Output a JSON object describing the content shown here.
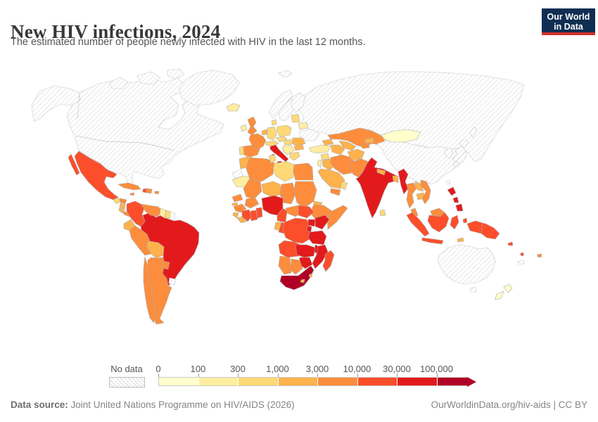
{
  "header": {
    "title": "New HIV infections, 2024",
    "subtitle": "The estimated number of people newly infected with HIV in the last 12 months."
  },
  "logo": {
    "line1": "Our World",
    "line2": "in Data",
    "bg": "#0f2e52",
    "accent": "#cf3129"
  },
  "legend": {
    "no_data_label": "No data",
    "tick_labels": [
      "0",
      "100",
      "300",
      "1,000",
      "3,000",
      "10,000",
      "30,000",
      "100,000"
    ]
  },
  "footer": {
    "source_label": "Data source:",
    "source_text": " Joint United Nations Programme on HIV/AIDS (2026)",
    "right_text": "OurWorldinData.org/hiv-aids | CC BY"
  },
  "chart_data": {
    "type": "choropleth",
    "title": "New HIV infections, 2024",
    "unit": "people newly infected with HIV in the last 12 months",
    "legend_position": "bottom",
    "bins": [
      {
        "id": "c1",
        "range": "0-100",
        "color": "#ffffcc"
      },
      {
        "id": "c2",
        "range": "100-300",
        "color": "#ffeda0"
      },
      {
        "id": "c3",
        "range": "300-1,000",
        "color": "#fed976"
      },
      {
        "id": "c4",
        "range": "1,000-3,000",
        "color": "#feb24c"
      },
      {
        "id": "c5",
        "range": "3,000-10,000",
        "color": "#fd8d3c"
      },
      {
        "id": "c6",
        "range": "10,000-30,000",
        "color": "#fc4e2a"
      },
      {
        "id": "c7",
        "range": "30,000-100,000",
        "color": "#e31a1c"
      },
      {
        "id": "c8",
        "range": "100,000+",
        "color": "#b10026"
      },
      {
        "id": "nodata",
        "range": "No data",
        "color": "hatch"
      }
    ],
    "countries": {
      "United States": "nodata",
      "Canada": "nodata",
      "Greenland": "nodata",
      "Mexico": "c6",
      "Guatemala": "c3",
      "Honduras": "c5",
      "Nicaragua": "c4",
      "Costa Rica": "c4",
      "Panama": "c5",
      "Cuba": "c5",
      "Jamaica": "c5",
      "Haiti": "c6",
      "Dominican Republic": "c5",
      "Puerto Rico": "c5",
      "Colombia": "c6",
      "Venezuela": "c5",
      "Guyana": "c2",
      "Suriname": "c3",
      "French Guiana": "nodata",
      "Ecuador": "c4",
      "Peru": "c5",
      "Bolivia": "c4",
      "Brazil": "c7",
      "Paraguay": "c5",
      "Uruguay": "nodata",
      "Argentina": "c5",
      "Chile": "c5",
      "Iceland": "c2",
      "Ireland": "c2",
      "United Kingdom": "c5",
      "Portugal": "c3",
      "Spain": "c5",
      "France": "c5",
      "Belgium": "c4",
      "Germany": "c3",
      "Denmark": "c3",
      "Norway": "nodata",
      "Sweden": "nodata",
      "Finland": "nodata",
      "Baltic states": "c3",
      "Poland": "c3",
      "Czechia": "c3",
      "Austria": "c3",
      "Hungary": "c3",
      "Romania": "c4",
      "Serbia": "c2",
      "Bulgaria": "c4",
      "Greece": "c3",
      "Italy": "c7",
      "Belarus": "c2",
      "Ukraine": "nodata",
      "Russia": "nodata",
      "Svalbard": "nodata",
      "Turkey": "c2",
      "Syria": "c3",
      "Jordan": "c2",
      "Iraq": "c4",
      "Saudi Arabia": "c4",
      "Yemen": "c5",
      "Oman": "c3",
      "Iran": "c5",
      "Georgia": "c4",
      "Kazakhstan": "c5",
      "Uzbekistan": "c4",
      "Turkmenistan": "c4",
      "Kyrgyzstan": "c4",
      "Tajikistan": "c5",
      "Afghanistan": "c4",
      "Pakistan": "c5",
      "India": "c7",
      "Nepal": "c4",
      "Bangladesh": "c4",
      "Sri Lanka": "c3",
      "Myanmar": "c7",
      "Thailand": "c5",
      "Laos": "c4",
      "Cambodia": "c4",
      "Vietnam": "c5",
      "Malaysia": "c5",
      "Mongolia": "c1",
      "China": "nodata",
      "Taiwan": "nodata",
      "South Korea": "nodata",
      "Japan": "nodata",
      "Morocco": "c4",
      "Western Sahara": "nodata",
      "Mauritania": "c2",
      "Mali": "c5",
      "Algeria": "c5",
      "Tunisia": "c3",
      "Libya": "c3",
      "Egypt": "c5",
      "Niger": "c4",
      "Chad": "c5",
      "Sudan": "c5",
      "Eritrea": "c4",
      "Ethiopia": "c5",
      "Somalia": "c5",
      "Senegal": "c5",
      "Guinea-Bissau": "c4",
      "Guinea": "c5",
      "Sierra Leone": "c4",
      "Liberia": "c4",
      "Cote d'Ivoire": "c6",
      "Ghana": "c6",
      "Benin": "c6",
      "Burkina Faso": "c5",
      "Nigeria": "c7",
      "Cameroon": "c6",
      "Central African Republic": "c5",
      "South Sudan": "c6",
      "Democratic Republic of Congo": "c6",
      "Gabon": "c4",
      "Congo": "c6",
      "Uganda": "c7",
      "Kenya": "c7",
      "Rwanda": "c7",
      "Tanzania": "c7",
      "Angola": "c6",
      "Zambia": "c7",
      "Malawi": "c7",
      "Mozambique": "c7",
      "Zimbabwe": "c7",
      "Namibia": "c5",
      "Botswana": "c5",
      "South Africa": "c8",
      "Lesotho": "c4",
      "Eswatini": "c4",
      "Madagascar": "c6",
      "Indonesia": "c6",
      "Timor-Leste": "c4",
      "Philippines": "c7",
      "Papua New Guinea": "c6",
      "Australia": "nodata",
      "New Zealand": "c1",
      "Fiji": "c5",
      "New Caledonia": "nodata",
      "Solomon Islands": "c6",
      "Vanuatu": "c6"
    }
  }
}
